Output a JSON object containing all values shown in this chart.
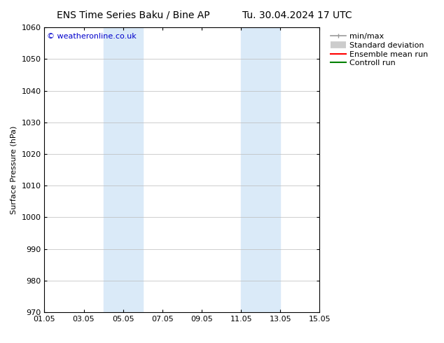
{
  "title_left": "ENS Time Series Baku / Bine AP",
  "title_right": "Tu. 30.04.2024 17 UTC",
  "ylabel": "Surface Pressure (hPa)",
  "ylim": [
    970,
    1060
  ],
  "yticks": [
    970,
    980,
    990,
    1000,
    1010,
    1020,
    1030,
    1040,
    1050,
    1060
  ],
  "xlim_start": 0.0,
  "xlim_end": 14.0,
  "xtick_labels": [
    "01.05",
    "03.05",
    "05.05",
    "07.05",
    "09.05",
    "11.05",
    "13.05",
    "15.05"
  ],
  "xtick_positions": [
    0,
    2,
    4,
    6,
    8,
    10,
    12,
    14
  ],
  "shaded_bands": [
    {
      "x_start": 3.0,
      "x_end": 5.0
    },
    {
      "x_start": 10.0,
      "x_end": 12.0
    }
  ],
  "shaded_color": "#daeaf8",
  "background_color": "#ffffff",
  "grid_color": "#bbbbbb",
  "watermark_text": "© weatheronline.co.uk",
  "watermark_color": "#0000cc",
  "legend_items": [
    {
      "label": "min/max",
      "color": "#999999",
      "linestyle": "-",
      "linewidth": 1.2,
      "type": "line_with_caps"
    },
    {
      "label": "Standard deviation",
      "color": "#cccccc",
      "linestyle": "-",
      "linewidth": 7,
      "type": "thick"
    },
    {
      "label": "Ensemble mean run",
      "color": "#ff0000",
      "linestyle": "-",
      "linewidth": 1.5,
      "type": "line"
    },
    {
      "label": "Controll run",
      "color": "#008000",
      "linestyle": "-",
      "linewidth": 1.5,
      "type": "line"
    }
  ],
  "title_fontsize": 10,
  "axis_fontsize": 8,
  "tick_fontsize": 8,
  "legend_fontsize": 8
}
